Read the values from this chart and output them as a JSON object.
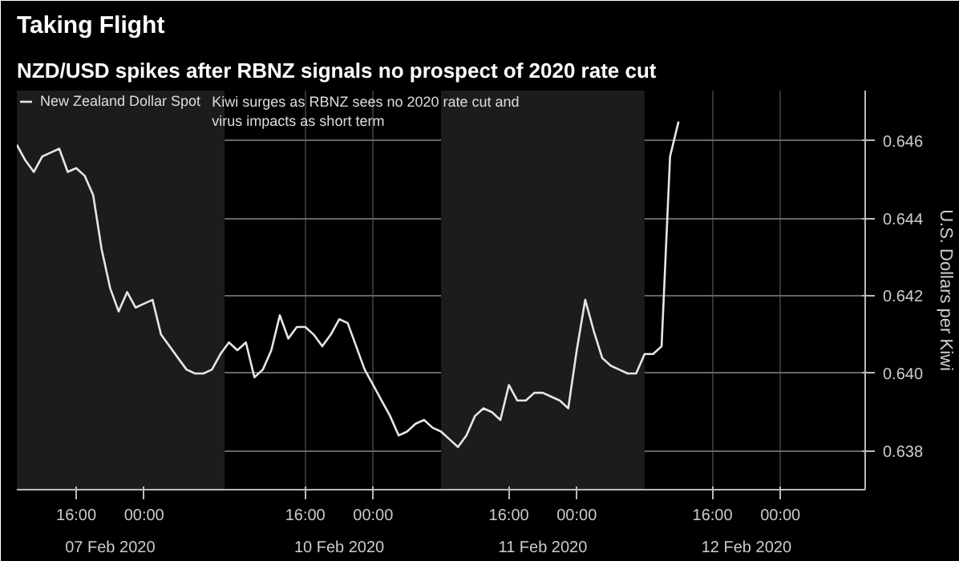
{
  "chart_data": {
    "type": "line",
    "title": "Taking Flight",
    "subtitle": "NZD/USD spikes after RBNZ signals no prospect of 2020 rate cut",
    "ylabel": "U.S. Dollars per Kiwi",
    "categories": [
      null,
      null,
      null,
      null,
      null,
      null,
      null,
      "16:00",
      null,
      null,
      null,
      null,
      null,
      null,
      null,
      "00:00",
      null,
      null,
      null,
      null,
      null,
      null,
      null,
      null,
      null,
      null,
      null,
      null,
      null,
      null,
      null,
      null,
      null,
      null,
      "16:00",
      null,
      null,
      null,
      null,
      null,
      null,
      null,
      "00:00",
      null,
      null,
      null,
      null,
      null,
      null,
      null,
      null,
      null,
      null,
      null,
      null,
      null,
      null,
      null,
      "16:00",
      null,
      null,
      null,
      null,
      null,
      null,
      null,
      "00:00",
      null,
      null,
      null,
      null,
      null,
      null,
      null,
      null,
      null,
      null,
      null,
      null,
      null,
      null,
      null,
      "16:00",
      null,
      null,
      null,
      null,
      null,
      null,
      null,
      "00:00",
      null,
      null,
      null,
      null,
      null,
      null,
      null,
      null,
      null,
      null
    ],
    "series": [
      {
        "name": "New Zealand Dollar Spot",
        "color": "#e6e6e6",
        "values": [
          0.6459,
          0.6455,
          0.6452,
          0.6456,
          0.6457,
          0.6458,
          0.6452,
          0.6453,
          0.6451,
          0.6446,
          0.6432,
          0.6422,
          0.6416,
          0.6421,
          0.6417,
          0.6418,
          0.6419,
          0.641,
          0.6407,
          0.6404,
          0.6401,
          0.64,
          0.64,
          0.6401,
          0.6405,
          0.6408,
          0.6406,
          0.6408,
          0.6399,
          0.6401,
          0.6406,
          0.6415,
          0.6409,
          0.6412,
          0.6412,
          0.641,
          0.6407,
          0.641,
          0.6414,
          0.6413,
          0.6407,
          0.6401,
          0.6397,
          0.6393,
          0.6389,
          0.6384,
          0.6385,
          0.6387,
          0.6388,
          0.6386,
          0.6385,
          0.6383,
          0.6381,
          0.6384,
          0.6389,
          0.6391,
          0.639,
          0.6388,
          0.6397,
          0.6393,
          0.6393,
          0.6395,
          0.6395,
          0.6394,
          0.6393,
          0.6391,
          0.6406,
          0.6419,
          0.6411,
          0.6404,
          0.6402,
          0.6401,
          0.64,
          0.64,
          0.6405,
          0.6405,
          0.6407,
          0.6456,
          0.6465,
          null,
          null,
          null,
          null,
          null,
          null,
          null,
          null,
          null,
          null,
          null,
          null,
          null,
          null,
          null,
          null,
          null,
          null,
          null,
          null,
          null,
          null
        ]
      }
    ],
    "ylim": [
      0.637,
      0.6473
    ],
    "yticks": [
      {
        "value": 0.638,
        "label": "0.638"
      },
      {
        "value": 0.64,
        "label": "0.640"
      },
      {
        "value": 0.642,
        "label": "0.642"
      },
      {
        "value": 0.644,
        "label": "0.644"
      },
      {
        "value": 0.646,
        "label": "0.646"
      }
    ],
    "annotations": [
      "Kiwi surges as RBNZ sees no 2020 rate cut and\nvirus impacts as short term",
      "07 Feb 2020",
      "10 Feb 2020",
      "11 Feb 2020",
      "12 Feb 2020"
    ],
    "grid": true,
    "legend": "top left"
  }
}
